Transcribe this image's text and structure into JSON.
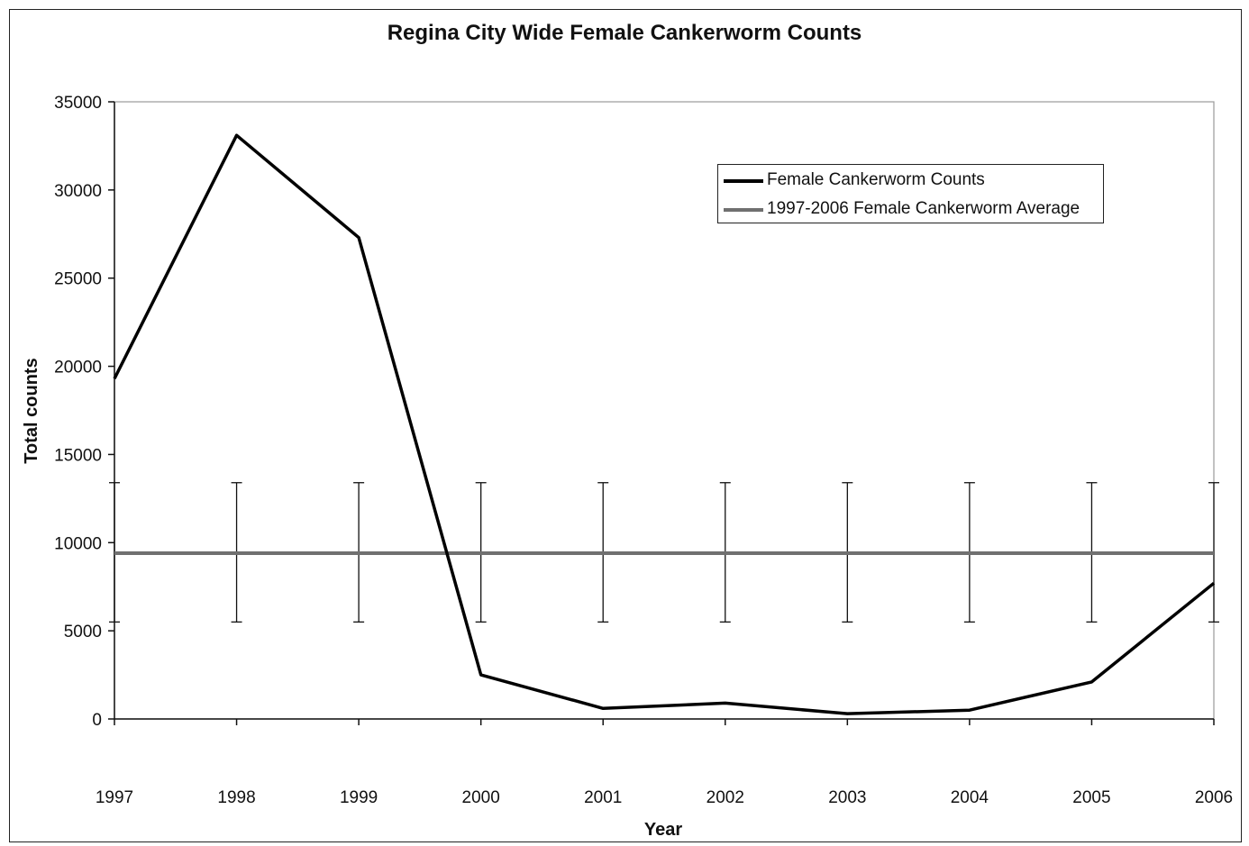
{
  "chart_data": {
    "type": "line",
    "title": "Regina City Wide Female Cankerworm Counts",
    "xlabel": "Year",
    "ylabel": "Total counts",
    "categories": [
      "1997",
      "1998",
      "1999",
      "2000",
      "2001",
      "2002",
      "2003",
      "2004",
      "2005",
      "2006"
    ],
    "ylim": [
      0,
      35000
    ],
    "yticks": [
      "0",
      "5000",
      "10000",
      "15000",
      "20000",
      "25000",
      "30000",
      "35000"
    ],
    "grid": false,
    "legend_position": "top-right",
    "series": [
      {
        "name": "Female Cankerworm Counts",
        "color": "#000000",
        "values": [
          19300,
          33100,
          27300,
          2500,
          600,
          900,
          300,
          500,
          2100,
          7700
        ]
      },
      {
        "name": "1997-2006 Female Cankerworm Average",
        "color": "#707070",
        "values": [
          9400,
          9400,
          9400,
          9400,
          9400,
          9400,
          9400,
          9400,
          9400,
          9400
        ],
        "error_bars": {
          "upper": 13400,
          "lower": 5500
        }
      }
    ]
  }
}
